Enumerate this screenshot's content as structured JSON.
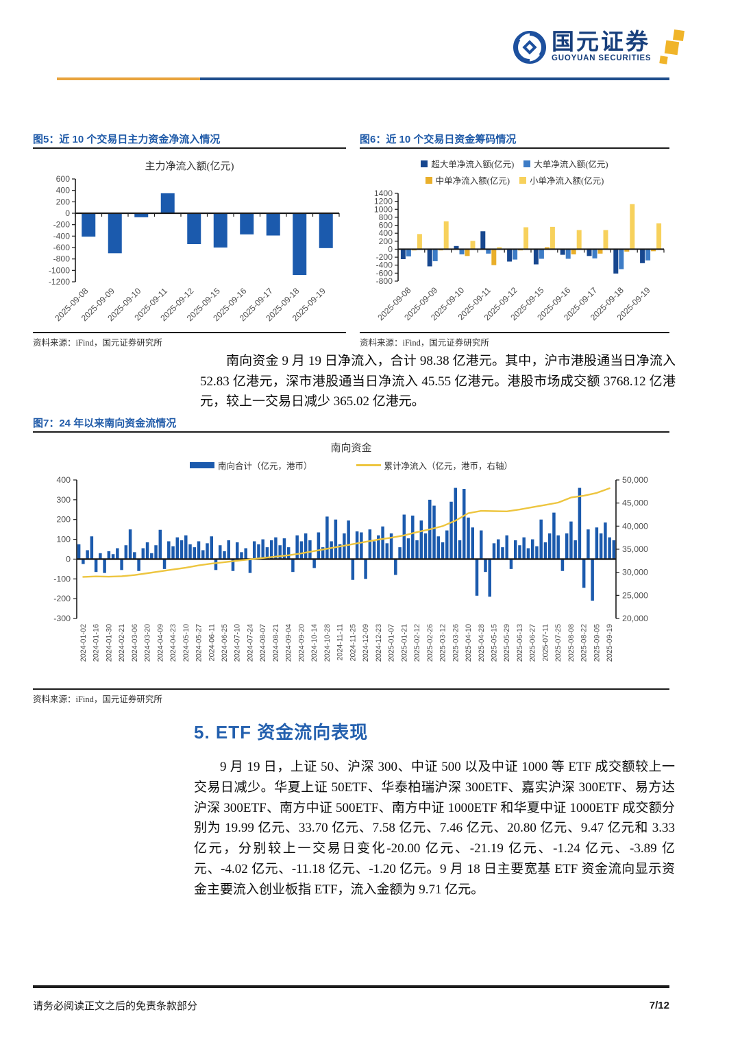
{
  "header": {
    "brand_cn": "国元证券",
    "brand_en": "GUOYUAN SECURITIES"
  },
  "figure5": {
    "caption": "图5：近 10 个交易日主力资金净流入情况",
    "source": "资料来源：iFind，国元证券研究所"
  },
  "figure6": {
    "caption": "图6：近 10 个交易日资金筹码情况",
    "source": "资料来源：iFind，国元证券研究所"
  },
  "figure7": {
    "caption": "图7：24 年以来南向资金流情况",
    "source": "资料来源：iFind，国元证券研究所"
  },
  "paragraph1": "南向资金 9 月 19 日净流入，合计 98.38 亿港元。其中，沪市港股通当日净流入 52.83 亿港元，深市港股通当日净流入 45.55 亿港元。港股市场成交额 3768.12 亿港元，较上一交易日减少 365.02 亿港元。",
  "section5": {
    "title": "5. ETF 资金流向表现",
    "paragraph": "9 月 19 日，上证 50、沪深 300、中证 500 以及中证 1000 等 ETF 成交额较上一交易日减少。华夏上证 50ETF、华泰柏瑞沪深 300ETF、嘉实沪深 300ETF、易方达沪深 300ETF、南方中证 500ETF、南方中证 1000ETF 和华夏中证 1000ETF 成交额分别为 19.99 亿元、33.70 亿元、7.58 亿元、7.46 亿元、20.80 亿元、9.47 亿元和 3.33 亿元，分别较上一交易日变化-20.00 亿元、-21.19 亿元、-1.24 亿元、-3.89 亿元、-4.02 亿元、-11.18 亿元、-1.20 亿元。9 月 18 日主要宽基 ETF 资金流向显示资金主要流入创业板指 ETF，流入金额为 9.71 亿元。"
  },
  "footer": {
    "disclaimer": "请务必阅读正文之后的免责条款部分",
    "page": "7/12"
  },
  "colors": {
    "caption_blue": "#1F5AA8",
    "heading_blue": "#2460AE",
    "bar_blue": "#1B5AAD",
    "navy": "#17478F",
    "mid_blue": "#3D7CC6",
    "gold": "#E9AF2B",
    "light_yellow": "#F7D15C",
    "line_yellow": "#EDC53F",
    "header_yellow": "#E8A33D",
    "header_blue": "#1F4E8C",
    "brand_navy": "#173F7C"
  },
  "chart_data": [
    {
      "figure": "图5",
      "type": "bar",
      "title": "主力净流入额(亿元)",
      "categories": [
        "2025-09-08",
        "2025-09-09",
        "2025-09-10",
        "2025-09-11",
        "2025-09-12",
        "2025-09-15",
        "2025-09-16",
        "2025-09-17",
        "2025-09-18",
        "2025-09-19"
      ],
      "values": [
        -410,
        -700,
        -70,
        350,
        -540,
        -600,
        -370,
        -390,
        -1080,
        -610
      ],
      "ylim": [
        -1200,
        600
      ],
      "ytick_step": 200,
      "bar_color": "#1B5AAD",
      "xlabel": "",
      "ylabel": "",
      "grid": false,
      "legend_position": "none"
    },
    {
      "figure": "图6",
      "type": "bar",
      "title": "",
      "categories": [
        "2025-09-08",
        "2025-09-09",
        "2025-09-10",
        "2025-09-11",
        "2025-09-12",
        "2025-09-15",
        "2025-09-16",
        "2025-09-17",
        "2025-09-18",
        "2025-09-19"
      ],
      "series": [
        {
          "name": "超大单净流入额(亿元)",
          "color": "#17478F",
          "values": [
            -250,
            -430,
            80,
            450,
            -310,
            -380,
            -140,
            -170,
            -610,
            -350
          ]
        },
        {
          "name": "大单净流入额(亿元)",
          "color": "#3D7CC6",
          "values": [
            -180,
            -300,
            -130,
            -110,
            -260,
            -240,
            -240,
            -230,
            -500,
            -280
          ]
        },
        {
          "name": "中单净流入额(亿元)",
          "color": "#E9AF2B",
          "values": [
            -30,
            -30,
            -170,
            -400,
            -30,
            50,
            -130,
            -110,
            -60,
            -50
          ]
        },
        {
          "name": "小单净流入额(亿元)",
          "color": "#F7D15C",
          "values": [
            380,
            700,
            210,
            50,
            550,
            560,
            480,
            480,
            1130,
            650
          ]
        }
      ],
      "ylim": [
        -800,
        1400
      ],
      "ytick_step": 200,
      "grid": false,
      "legend_position": "top"
    },
    {
      "figure": "图7",
      "type": "combo",
      "title": "南向资金",
      "bar_series": {
        "name": "南向合计（亿元，港币）",
        "color": "#1B5AAD",
        "axis": "left"
      },
      "line_series": {
        "name": "累计净流入（亿元，港币，右轴）",
        "color": "#EDC53F",
        "axis": "right"
      },
      "x_labels": [
        "2024-01-02",
        "2024-01-16",
        "2024-01-30",
        "2024-02-21",
        "2024-03-06",
        "2024-03-20",
        "2024-04-09",
        "2024-04-23",
        "2024-05-10",
        "2024-05-27",
        "2024-06-11",
        "2024-06-25",
        "2024-07-10",
        "2024-07-24",
        "2024-08-07",
        "2024-08-21",
        "2024-09-04",
        "2024-09-20",
        "2024-10-14",
        "2024-10-28",
        "2024-11-11",
        "2024-11-25",
        "2024-12-09",
        "2024-12-23",
        "2025-01-07",
        "2025-01-21",
        "2025-02-12",
        "2025-02-26",
        "2025-03-12",
        "2025-03-26",
        "2025-04-10",
        "2025-04-28",
        "2025-05-15",
        "2025-05-29",
        "2025-06-13",
        "2025-06-27",
        "2025-07-11",
        "2025-07-25",
        "2025-08-08",
        "2025-08-22",
        "2025-09-05",
        "2025-09-19"
      ],
      "bars_per_label": 3,
      "bar_values": [
        75,
        -25,
        45,
        115,
        -65,
        30,
        -70,
        40,
        25,
        55,
        -55,
        70,
        150,
        35,
        -60,
        55,
        85,
        30,
        70,
        148,
        -50,
        90,
        65,
        110,
        95,
        120,
        75,
        60,
        90,
        45,
        80,
        115,
        -55,
        70,
        40,
        95,
        -60,
        85,
        35,
        55,
        -70,
        90,
        75,
        100,
        60,
        95,
        110,
        70,
        105,
        60,
        -65,
        120,
        90,
        130,
        95,
        -45,
        135,
        60,
        215,
        90,
        200,
        75,
        130,
        195,
        -105,
        140,
        135,
        -100,
        150,
        90,
        120,
        165,
        80,
        130,
        -80,
        60,
        225,
        105,
        220,
        95,
        195,
        130,
        300,
        270,
        115,
        85,
        145,
        290,
        360,
        95,
        355,
        210,
        160,
        -185,
        145,
        -65,
        -190,
        80,
        100,
        60,
        120,
        -50,
        95,
        70,
        110,
        55,
        100,
        65,
        200,
        85,
        130,
        235,
        120,
        -60,
        130,
        190,
        95,
        360,
        -145,
        150,
        -210,
        160,
        130,
        185,
        110,
        95
      ],
      "line_values": [
        29000,
        29100,
        29050,
        29150,
        29400,
        29800,
        30200,
        30600,
        31000,
        31500,
        31900,
        32200,
        32500,
        32800,
        33100,
        33400,
        33700,
        34100,
        34600,
        35100,
        35600,
        36100,
        36600,
        37100,
        37500,
        38000,
        38700,
        39300,
        40000,
        41200,
        42800,
        43300,
        43250,
        43200,
        43600,
        44100,
        44600,
        45100,
        46200,
        46600,
        47200,
        48200
      ],
      "left_ylim": [
        -300,
        400
      ],
      "left_tick_step": 100,
      "right_ylim": [
        20000,
        50000
      ],
      "right_tick_step": 5000,
      "grid": false,
      "legend_position": "top"
    }
  ]
}
